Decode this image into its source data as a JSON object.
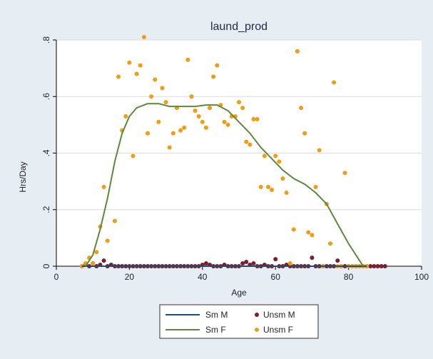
{
  "chart_data": {
    "type": "scatter",
    "title": "laund_prod",
    "xlabel": "Age",
    "ylabel": "Hrs/Day",
    "xlim": [
      0,
      100
    ],
    "ylim": [
      0,
      0.8
    ],
    "xticks": [
      0,
      20,
      40,
      60,
      80,
      100
    ],
    "xtick_labels": [
      "0",
      "20",
      "40",
      "60",
      "80",
      "100"
    ],
    "yticks": [
      0,
      0.2,
      0.4,
      0.6,
      0.8
    ],
    "ytick_labels": [
      "0",
      ".2",
      ".4",
      ".6",
      ".8"
    ],
    "grid": "horizontal",
    "legend_position": "bottom",
    "colors": {
      "sm_m": "#1f4e79",
      "sm_f": "#5d8a3a",
      "unsm_m": "#7a1f2e",
      "unsm_f": "#f39c12",
      "plot_bg": "#ffffff",
      "outer_bg": "#e7eef3"
    },
    "series": [
      {
        "name": "Sm M",
        "type": "line",
        "points": [
          [
            7,
            0
          ],
          [
            10,
            0
          ],
          [
            20,
            0
          ],
          [
            30,
            0
          ],
          [
            40,
            0
          ],
          [
            50,
            0
          ],
          [
            60,
            0
          ],
          [
            70,
            0
          ],
          [
            80,
            0
          ],
          [
            85,
            0
          ]
        ]
      },
      {
        "name": "Sm F",
        "type": "line",
        "points": [
          [
            8,
            0
          ],
          [
            10,
            0.04
          ],
          [
            12,
            0.13
          ],
          [
            14,
            0.24
          ],
          [
            16,
            0.37
          ],
          [
            18,
            0.47
          ],
          [
            20,
            0.53
          ],
          [
            22,
            0.56
          ],
          [
            25,
            0.575
          ],
          [
            28,
            0.575
          ],
          [
            31,
            0.565
          ],
          [
            35,
            0.565
          ],
          [
            38,
            0.565
          ],
          [
            41,
            0.57
          ],
          [
            44,
            0.57
          ],
          [
            47,
            0.55
          ],
          [
            50,
            0.51
          ],
          [
            53,
            0.47
          ],
          [
            56,
            0.42
          ],
          [
            59,
            0.38
          ],
          [
            62,
            0.34
          ],
          [
            65,
            0.31
          ],
          [
            68,
            0.29
          ],
          [
            71,
            0.26
          ],
          [
            74,
            0.22
          ],
          [
            77,
            0.15
          ],
          [
            80,
            0.08
          ],
          [
            83,
            0.02
          ],
          [
            84,
            0
          ]
        ]
      },
      {
        "name": "Unsm M",
        "type": "scatter",
        "points": [
          [
            7,
            0
          ],
          [
            8,
            0.005
          ],
          [
            9,
            0
          ],
          [
            10,
            0.01
          ],
          [
            11,
            0
          ],
          [
            12,
            0.005
          ],
          [
            13,
            0.02
          ],
          [
            14,
            0
          ],
          [
            15,
            0.005
          ],
          [
            16,
            0
          ],
          [
            17,
            0
          ],
          [
            18,
            0
          ],
          [
            19,
            0
          ],
          [
            20,
            0
          ],
          [
            21,
            0
          ],
          [
            22,
            0
          ],
          [
            23,
            0
          ],
          [
            24,
            0
          ],
          [
            25,
            0
          ],
          [
            26,
            0
          ],
          [
            27,
            0
          ],
          [
            28,
            0
          ],
          [
            29,
            0
          ],
          [
            30,
            0
          ],
          [
            31,
            0
          ],
          [
            32,
            0
          ],
          [
            33,
            0
          ],
          [
            34,
            0
          ],
          [
            35,
            0
          ],
          [
            36,
            0
          ],
          [
            37,
            0
          ],
          [
            38,
            0
          ],
          [
            39,
            0
          ],
          [
            40,
            0.005
          ],
          [
            41,
            0.01
          ],
          [
            42,
            0.005
          ],
          [
            43,
            0
          ],
          [
            44,
            0
          ],
          [
            45,
            0
          ],
          [
            46,
            0.005
          ],
          [
            47,
            0
          ],
          [
            48,
            0
          ],
          [
            49,
            0
          ],
          [
            50,
            0
          ],
          [
            51,
            0.01
          ],
          [
            52,
            0.015
          ],
          [
            53,
            0.005
          ],
          [
            54,
            0.01
          ],
          [
            55,
            0
          ],
          [
            56,
            0
          ],
          [
            57,
            0.005
          ],
          [
            58,
            0
          ],
          [
            59,
            0
          ],
          [
            60,
            0.025
          ],
          [
            61,
            0
          ],
          [
            62,
            0
          ],
          [
            63,
            0.005
          ],
          [
            64,
            0
          ],
          [
            65,
            0
          ],
          [
            66,
            0
          ],
          [
            67,
            0
          ],
          [
            68,
            0
          ],
          [
            69,
            0
          ],
          [
            70,
            0.03
          ],
          [
            71,
            0
          ],
          [
            72,
            0
          ],
          [
            73,
            0
          ],
          [
            74,
            0
          ],
          [
            75,
            0
          ],
          [
            76,
            0
          ],
          [
            77,
            0.02
          ],
          [
            78,
            0
          ],
          [
            79,
            0
          ],
          [
            80,
            0
          ],
          [
            81,
            0
          ],
          [
            82,
            0
          ],
          [
            83,
            0
          ],
          [
            84,
            0
          ],
          [
            85,
            0
          ],
          [
            86,
            0
          ],
          [
            87,
            0
          ],
          [
            88,
            0
          ],
          [
            89,
            0
          ],
          [
            90,
            0
          ]
        ]
      },
      {
        "name": "Unsm F",
        "type": "scatter",
        "points": [
          [
            7,
            0
          ],
          [
            8,
            0.01
          ],
          [
            9,
            0.03
          ],
          [
            10,
            0.01
          ],
          [
            11,
            0.05
          ],
          [
            12,
            0.14
          ],
          [
            13,
            0.28
          ],
          [
            14,
            0.09
          ],
          [
            16,
            0.16
          ],
          [
            17,
            0.67
          ],
          [
            18,
            0.48
          ],
          [
            19,
            0.53
          ],
          [
            20,
            0.72
          ],
          [
            21,
            0.39
          ],
          [
            22,
            0.68
          ],
          [
            23,
            0.71
          ],
          [
            24,
            0.81
          ],
          [
            25,
            0.47
          ],
          [
            26,
            0.6
          ],
          [
            27,
            0.66
          ],
          [
            28,
            0.51
          ],
          [
            29,
            0.63
          ],
          [
            30,
            0.58
          ],
          [
            31,
            0.42
          ],
          [
            32,
            0.47
          ],
          [
            33,
            0.56
          ],
          [
            34,
            0.48
          ],
          [
            35,
            0.49
          ],
          [
            36,
            0.73
          ],
          [
            37,
            0.6
          ],
          [
            38,
            0.55
          ],
          [
            39,
            0.53
          ],
          [
            40,
            0.51
          ],
          [
            41,
            0.49
          ],
          [
            42,
            0.56
          ],
          [
            43,
            0.67
          ],
          [
            44,
            0.71
          ],
          [
            45,
            0.57
          ],
          [
            46,
            0.51
          ],
          [
            47,
            0.5
          ],
          [
            48,
            0.53
          ],
          [
            49,
            0.53
          ],
          [
            50,
            0.58
          ],
          [
            51,
            0.56
          ],
          [
            52,
            0.44
          ],
          [
            53,
            0.43
          ],
          [
            54,
            0.52
          ],
          [
            55,
            0.52
          ],
          [
            56,
            0.28
          ],
          [
            57,
            0.39
          ],
          [
            58,
            0.28
          ],
          [
            59,
            0.27
          ],
          [
            60,
            0.39
          ],
          [
            61,
            0.37
          ],
          [
            62,
            0.31
          ],
          [
            63,
            0.26
          ],
          [
            64,
            0.01
          ],
          [
            65,
            0.13
          ],
          [
            66,
            0.76
          ],
          [
            67,
            0.56
          ],
          [
            68,
            0.47
          ],
          [
            69,
            0.12
          ],
          [
            70,
            0.11
          ],
          [
            71,
            0.28
          ],
          [
            72,
            0.41
          ],
          [
            73,
            0
          ],
          [
            74,
            0.22
          ],
          [
            75,
            0.08
          ],
          [
            76,
            0.65
          ],
          [
            77,
            0
          ],
          [
            78,
            0
          ],
          [
            79,
            0.33
          ],
          [
            80,
            0
          ],
          [
            81,
            0
          ],
          [
            82,
            0
          ],
          [
            83,
            0
          ],
          [
            84,
            0
          ],
          [
            85,
            0
          ]
        ]
      }
    ],
    "legend": [
      {
        "label": "Sm M",
        "key": "sm_m",
        "kind": "line"
      },
      {
        "label": "Unsm M",
        "key": "unsm_m",
        "kind": "dot"
      },
      {
        "label": "Sm F",
        "key": "sm_f",
        "kind": "line"
      },
      {
        "label": "Unsm F",
        "key": "unsm_f",
        "kind": "dot"
      }
    ]
  }
}
